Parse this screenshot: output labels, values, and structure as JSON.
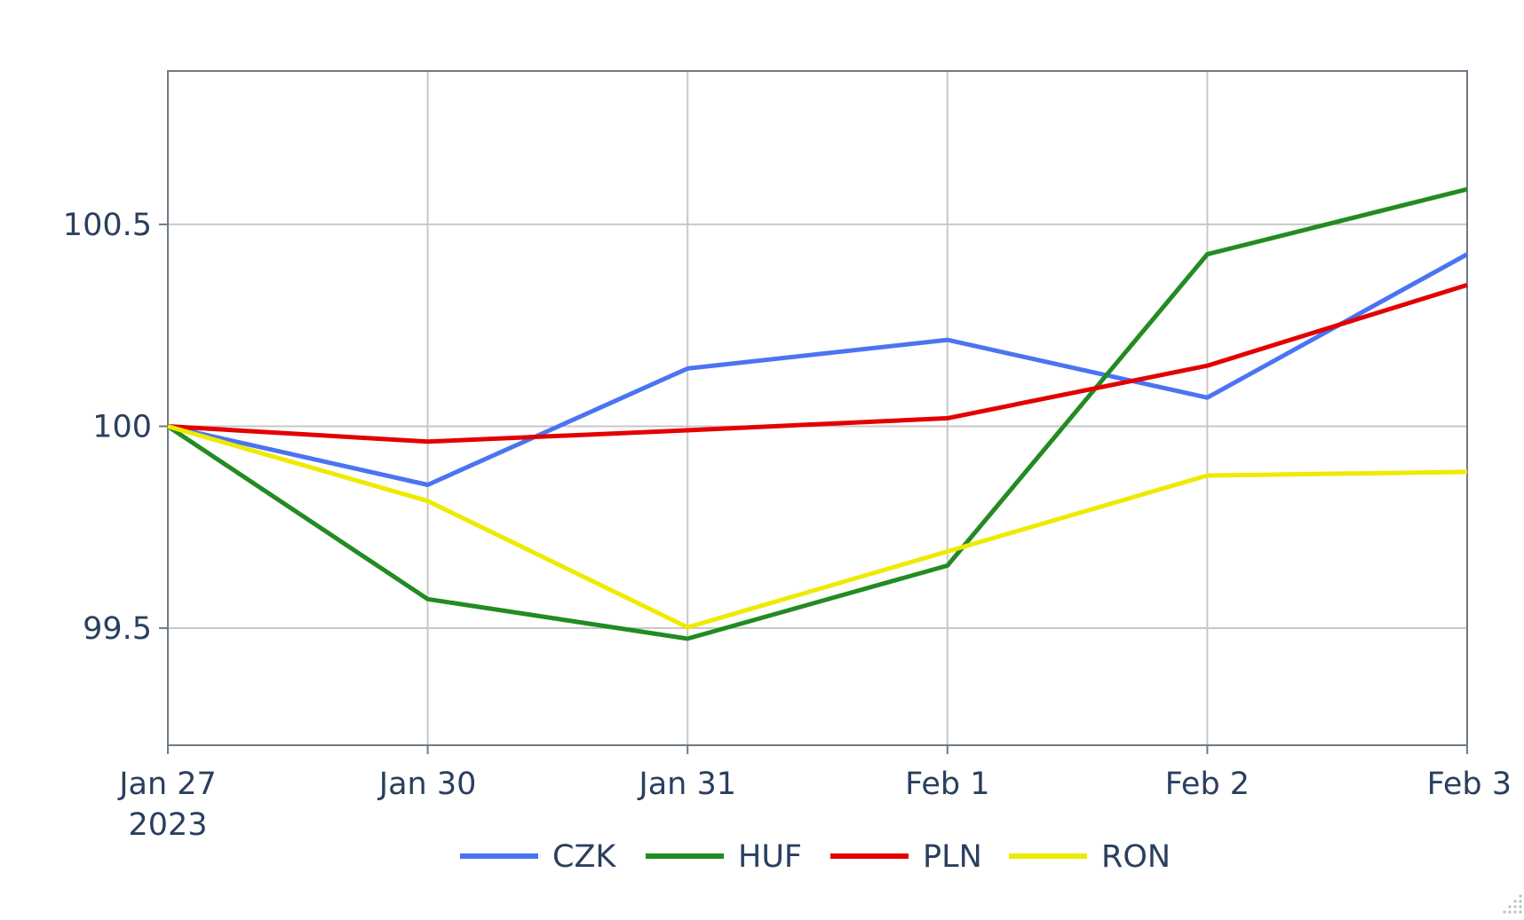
{
  "chart_data": {
    "type": "line",
    "title": "",
    "xlabel": "",
    "ylabel": "",
    "x": [
      "2023-01-27",
      "2023-01-30",
      "2023-01-31",
      "2023-02-01",
      "2023-02-02",
      "2023-02-03"
    ],
    "x_tick_labels": [
      "Jan 27",
      "Jan 30",
      "Jan 31",
      "Feb 1",
      "Feb 2",
      "Feb 3"
    ],
    "x_tick_sublabels": [
      "2023",
      "",
      "",
      "",
      "",
      ""
    ],
    "y_ticks": [
      99.5,
      100,
      100.5
    ],
    "y_tick_labels": [
      "99.5",
      "100",
      "100.5"
    ],
    "ylim": [
      99.21,
      100.88
    ],
    "grid": true,
    "legend_position": "bottom-center",
    "series": [
      {
        "name": "CZK",
        "color": "#4a74f2",
        "values": [
          100.0,
          99.855,
          100.143,
          100.214,
          100.071,
          100.426
        ]
      },
      {
        "name": "HUF",
        "color": "#228b22",
        "values": [
          100.0,
          99.572,
          99.474,
          99.655,
          100.426,
          100.587
        ]
      },
      {
        "name": "PLN",
        "color": "#e30000",
        "values": [
          100.0,
          99.962,
          99.99,
          100.02,
          100.15,
          100.35
        ]
      },
      {
        "name": "RON",
        "color": "#eeea00",
        "values": [
          100.0,
          99.815,
          99.502,
          99.69,
          99.878,
          99.887
        ]
      }
    ]
  }
}
